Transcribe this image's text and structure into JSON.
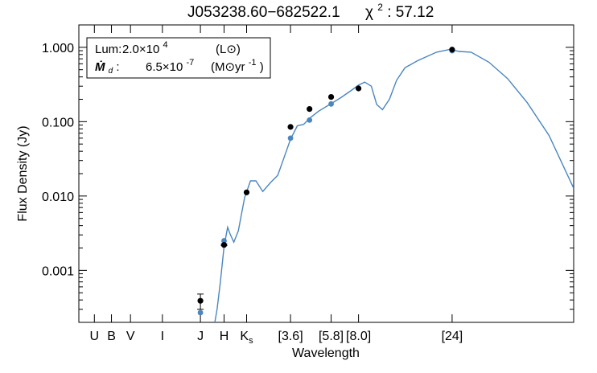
{
  "chart_data": {
    "type": "line",
    "title": "J053238.60−682522.1",
    "chi2": {
      "symbol": "χ",
      "superscript": "2",
      "value": ": 57.12"
    },
    "xlabel": "Wavelength",
    "ylabel": "Flux Density (Jy)",
    "yscale": "log",
    "ylim": [
      0.0002,
      2.0
    ],
    "xscale": "log",
    "xlim": [
      0.3,
      100
    ],
    "yticks": [
      {
        "value": 1.0,
        "label": "1.000"
      },
      {
        "value": 0.1,
        "label": "0.100"
      },
      {
        "value": 0.01,
        "label": "0.010"
      },
      {
        "value": 0.001,
        "label": "0.001"
      }
    ],
    "bands": [
      {
        "label": "U",
        "wavelength": 0.36
      },
      {
        "label": "B",
        "wavelength": 0.44
      },
      {
        "label": "V",
        "wavelength": 0.55
      },
      {
        "label": "I",
        "wavelength": 0.8
      },
      {
        "label": "J",
        "wavelength": 1.25
      },
      {
        "label": "H",
        "wavelength": 1.65
      },
      {
        "label": "K",
        "sub": "s",
        "wavelength": 2.15
      },
      {
        "label": "[3.6]",
        "wavelength": 3.6
      },
      {
        "label": "[5.8]",
        "wavelength": 5.8
      },
      {
        "label": "[8.0]",
        "wavelength": 8.0
      },
      {
        "label": "[24]",
        "wavelength": 24
      }
    ],
    "legend": {
      "placement": "top-left",
      "lum_label": "Lum:",
      "lum_value": "2.0×10",
      "lum_exp": "4",
      "lum_unit": "(L⊙)",
      "mdot_label": "Ṁ",
      "mdot_sub": "d",
      "mdot_colon": ":",
      "mdot_value": "6.5×10",
      "mdot_exp": "-7",
      "mdot_unit_a": "(M⊙yr",
      "mdot_unit_exp": "-1",
      "mdot_unit_b": ")"
    },
    "colors": {
      "model": "#4a86c0",
      "observed": "#000000",
      "synthetic": "#4a86c0"
    },
    "series": [
      {
        "kind": "model_curve",
        "x": [
          1.48,
          1.52,
          1.58,
          1.65,
          1.72,
          1.77,
          1.85,
          1.95,
          2.1,
          2.25,
          2.4,
          2.6,
          2.85,
          3.1,
          3.35,
          3.6,
          3.9,
          4.2,
          4.5,
          5.0,
          5.8,
          6.5,
          7.3,
          8.0,
          8.6,
          9.3,
          9.9,
          10.6,
          11.5,
          12.5,
          13.8,
          16.0,
          20.0,
          23.5,
          26.0,
          30.0,
          37.0,
          46.0,
          58.0,
          75.0,
          100.0
        ],
        "y": [
          0.0002,
          0.0003,
          0.0007,
          0.0021,
          0.0038,
          0.0031,
          0.0024,
          0.0034,
          0.0095,
          0.016,
          0.016,
          0.0115,
          0.0152,
          0.019,
          0.034,
          0.058,
          0.088,
          0.092,
          0.111,
          0.138,
          0.175,
          0.21,
          0.26,
          0.31,
          0.34,
          0.3,
          0.17,
          0.145,
          0.2,
          0.36,
          0.53,
          0.66,
          0.86,
          0.94,
          0.88,
          0.86,
          0.63,
          0.38,
          0.18,
          0.065,
          0.0127
        ]
      },
      {
        "kind": "observed",
        "x": [
          1.25,
          1.65,
          2.15,
          3.6,
          4.5,
          5.8,
          8.0,
          24.0
        ],
        "y": [
          0.00039,
          0.0022,
          0.0112,
          0.085,
          0.148,
          0.215,
          0.28,
          0.93
        ],
        "yerr_low": [
          9e-05,
          5e-05,
          0.0,
          0.0,
          0.0,
          0.0,
          0.0,
          0.0
        ],
        "yerr_high": [
          9e-05,
          5e-05,
          0.0,
          0.0,
          0.0,
          0.0,
          0.0,
          0.0
        ]
      },
      {
        "kind": "synthetic",
        "x": [
          1.25,
          1.65,
          2.15,
          3.6,
          4.5,
          5.8,
          24.0
        ],
        "y": [
          0.00027,
          0.0025,
          0.0112,
          0.06,
          0.105,
          0.173,
          0.9
        ]
      }
    ]
  }
}
